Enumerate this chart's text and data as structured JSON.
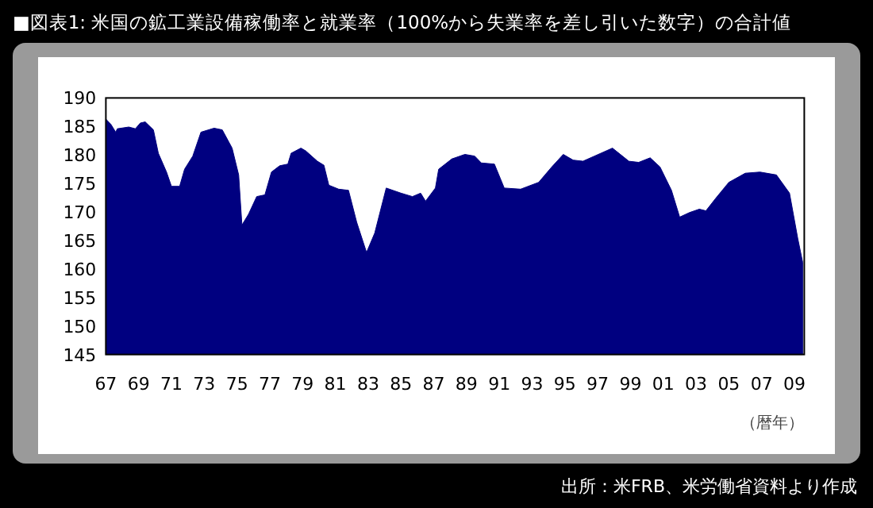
{
  "chart_data": {
    "type": "area",
    "title": "■図表1: 米国の鉱工業設備稼働率と就業率（100%から失業率を差し引いた数字）の合計値",
    "xlabel": "（暦年）",
    "annotations": [
      "出所：米FRB、米労働省資料より作成"
    ],
    "x": [
      1967.0,
      1967.3,
      1967.6,
      1967.7,
      1968.4,
      1968.8,
      1969.1,
      1969.4,
      1969.9,
      1970.2,
      1970.7,
      1971.0,
      1971.5,
      1971.8,
      1972.3,
      1972.8,
      1973.6,
      1974.1,
      1974.7,
      1975.1,
      1975.3,
      1975.7,
      1976.2,
      1976.7,
      1977.1,
      1977.6,
      1978.1,
      1978.3,
      1978.9,
      1979.2,
      1979.9,
      1980.3,
      1980.6,
      1981.2,
      1981.8,
      1982.3,
      1982.9,
      1983.4,
      1984.1,
      1985.0,
      1985.7,
      1986.2,
      1986.5,
      1987.1,
      1987.3,
      1988.1,
      1988.9,
      1989.5,
      1989.9,
      1990.7,
      1991.3,
      1992.3,
      1993.4,
      1994.2,
      1994.9,
      1995.5,
      1996.1,
      1996.8,
      1997.9,
      1998.9,
      1999.5,
      2000.2,
      2000.8,
      2001.5,
      2002.0,
      2002.6,
      2003.2,
      2003.6,
      2004.2,
      2005.0,
      2006.0,
      2006.9,
      2007.9,
      2008.7,
      2009.2,
      2009.5
    ],
    "series": [
      {
        "color": "#000080",
        "values": [
          186.3,
          185.4,
          184.0,
          184.6,
          184.9,
          184.6,
          185.6,
          185.8,
          184.4,
          180.3,
          177.0,
          174.5,
          174.5,
          177.5,
          179.8,
          184.0,
          184.7,
          184.4,
          181.2,
          176.5,
          167.7,
          169.6,
          172.7,
          173.0,
          177.0,
          178.1,
          178.4,
          180.3,
          181.2,
          180.7,
          178.9,
          178.2,
          174.7,
          174.0,
          173.8,
          168.2,
          162.9,
          166.3,
          174.2,
          173.3,
          172.7,
          173.3,
          171.9,
          174.2,
          177.5,
          179.3,
          180.1,
          179.8,
          178.6,
          178.4,
          174.2,
          174.0,
          175.2,
          177.9,
          180.1,
          179.1,
          178.9,
          179.8,
          181.2,
          178.9,
          178.7,
          179.5,
          177.9,
          173.8,
          169.1,
          169.9,
          170.5,
          170.2,
          172.4,
          175.2,
          176.8,
          177.0,
          176.5,
          173.3,
          165.4,
          161.2
        ]
      }
    ],
    "xlim": [
      1967,
      2009.6
    ],
    "ylim": [
      145,
      190
    ],
    "xticks": [
      {
        "value": 1967,
        "label": "67"
      },
      {
        "value": 1969,
        "label": "69"
      },
      {
        "value": 1971,
        "label": "71"
      },
      {
        "value": 1973,
        "label": "73"
      },
      {
        "value": 1975,
        "label": "75"
      },
      {
        "value": 1977,
        "label": "77"
      },
      {
        "value": 1979,
        "label": "79"
      },
      {
        "value": 1981,
        "label": "81"
      },
      {
        "value": 1983,
        "label": "83"
      },
      {
        "value": 1985,
        "label": "85"
      },
      {
        "value": 1987,
        "label": "87"
      },
      {
        "value": 1989,
        "label": "89"
      },
      {
        "value": 1991,
        "label": "91"
      },
      {
        "value": 1993,
        "label": "93"
      },
      {
        "value": 1995,
        "label": "95"
      },
      {
        "value": 1997,
        "label": "97"
      },
      {
        "value": 1999,
        "label": "99"
      },
      {
        "value": 2001,
        "label": "01"
      },
      {
        "value": 2003,
        "label": "03"
      },
      {
        "value": 2005,
        "label": "05"
      },
      {
        "value": 2007,
        "label": "07"
      },
      {
        "value": 2009,
        "label": "09"
      }
    ],
    "yticks": [
      145,
      150,
      155,
      160,
      165,
      170,
      175,
      180,
      185,
      190
    ],
    "grid": false
  }
}
